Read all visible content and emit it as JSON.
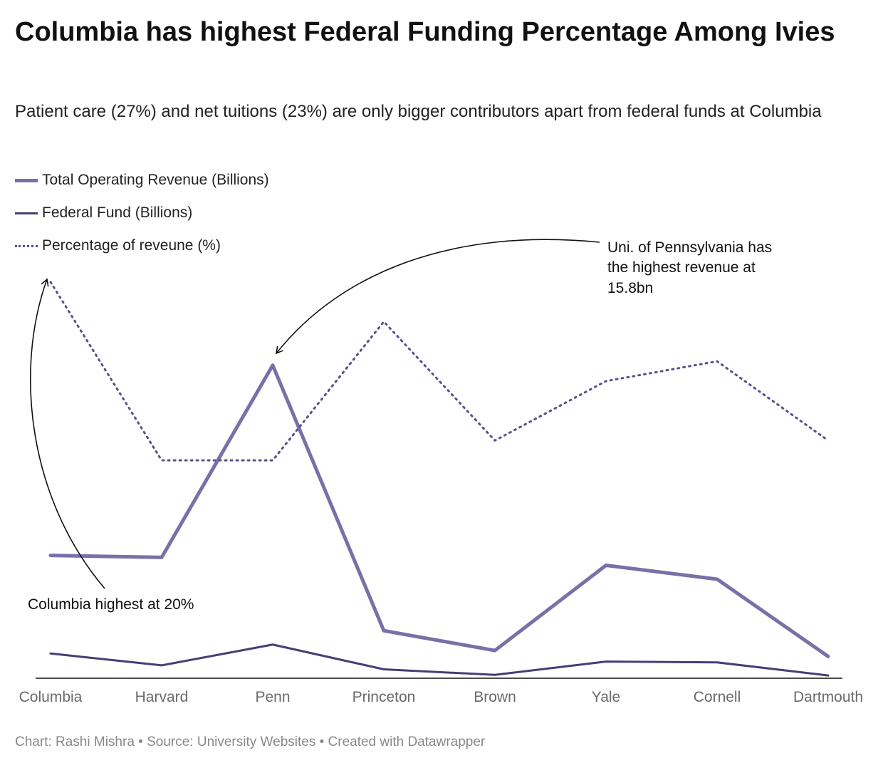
{
  "title": "Columbia has highest Federal Funding Percentage Among Ivies",
  "subtitle": "Patient care (27%) and net tuitions (23%) are only bigger contributors apart from federal funds at Columbia",
  "legend": [
    {
      "label": "Total Operating Revenue (Billions)",
      "color": "#7b6fa8",
      "style": "solid-thick"
    },
    {
      "label": "Federal Fund (Billions)",
      "color": "#4a3c74",
      "style": "solid"
    },
    {
      "label": "Percentage of reveune (%)",
      "color": "#5b4e8a",
      "style": "dotted"
    }
  ],
  "footer": "Chart: Rashi Mishra • Source: University Websites • Created with Datawrapper",
  "annotations": {
    "penn": [
      "Uni. of Pennsylvania has",
      "the highest revenue at",
      "15.8bn"
    ],
    "columbia": "Columbia highest at 20%"
  },
  "chart_data": {
    "type": "line",
    "categories": [
      "Columbia",
      "Harvard",
      "Penn",
      "Princeton",
      "Brown",
      "Yale",
      "Cornell",
      "Dartmouth"
    ],
    "series": [
      {
        "name": "Total Operating Revenue (Billions)",
        "values": [
          6.2,
          6.1,
          15.8,
          2.4,
          1.4,
          5.7,
          5.0,
          1.1
        ],
        "color": "#7b6fa8"
      },
      {
        "name": "Federal Fund (Billions)",
        "values": [
          1.25,
          0.65,
          1.7,
          0.45,
          0.17,
          0.84,
          0.8,
          0.14
        ],
        "color": "#4a3c74"
      },
      {
        "name": "Percentage of reveune (%)",
        "values": [
          20,
          11,
          11,
          18,
          12,
          15,
          16,
          12
        ],
        "color": "#5b4e8a"
      }
    ],
    "ylim": [
      0,
      20.5
    ],
    "grid": false,
    "legend_position": "top-left"
  }
}
